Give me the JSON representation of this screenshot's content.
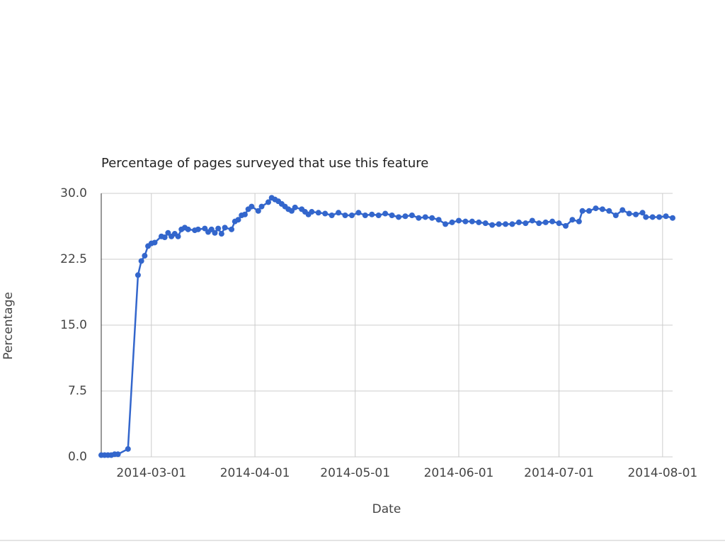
{
  "chart_data": {
    "type": "line",
    "title": "Percentage of pages surveyed that use this feature",
    "xlabel": "Date",
    "ylabel": "Percentage",
    "x": [
      "2014-02-14",
      "2014-02-15",
      "2014-02-16",
      "2014-02-17",
      "2014-02-18",
      "2014-02-19",
      "2014-02-22",
      "2014-02-25",
      "2014-02-26",
      "2014-02-27",
      "2014-02-28",
      "2014-03-01",
      "2014-03-02",
      "2014-03-04",
      "2014-03-05",
      "2014-03-06",
      "2014-03-07",
      "2014-03-08",
      "2014-03-09",
      "2014-03-10",
      "2014-03-11",
      "2014-03-12",
      "2014-03-14",
      "2014-03-15",
      "2014-03-17",
      "2014-03-18",
      "2014-03-19",
      "2014-03-20",
      "2014-03-21",
      "2014-03-22",
      "2014-03-23",
      "2014-03-25",
      "2014-03-26",
      "2014-03-27",
      "2014-03-28",
      "2014-03-29",
      "2014-03-30",
      "2014-03-31",
      "2014-04-02",
      "2014-04-03",
      "2014-04-05",
      "2014-04-06",
      "2014-04-07",
      "2014-04-08",
      "2014-04-09",
      "2014-04-10",
      "2014-04-11",
      "2014-04-12",
      "2014-04-13",
      "2014-04-15",
      "2014-04-16",
      "2014-04-17",
      "2014-04-18",
      "2014-04-20",
      "2014-04-22",
      "2014-04-24",
      "2014-04-26",
      "2014-04-28",
      "2014-04-30",
      "2014-05-02",
      "2014-05-04",
      "2014-05-06",
      "2014-05-08",
      "2014-05-10",
      "2014-05-12",
      "2014-05-14",
      "2014-05-16",
      "2014-05-18",
      "2014-05-20",
      "2014-05-22",
      "2014-05-24",
      "2014-05-26",
      "2014-05-28",
      "2014-05-30",
      "2014-06-01",
      "2014-06-03",
      "2014-06-05",
      "2014-06-07",
      "2014-06-09",
      "2014-06-11",
      "2014-06-13",
      "2014-06-15",
      "2014-06-17",
      "2014-06-19",
      "2014-06-21",
      "2014-06-23",
      "2014-06-25",
      "2014-06-27",
      "2014-06-29",
      "2014-07-01",
      "2014-07-03",
      "2014-07-05",
      "2014-07-07",
      "2014-07-08",
      "2014-07-10",
      "2014-07-12",
      "2014-07-14",
      "2014-07-16",
      "2014-07-18",
      "2014-07-20",
      "2014-07-22",
      "2014-07-24",
      "2014-07-26",
      "2014-07-27",
      "2014-07-29",
      "2014-07-31",
      "2014-08-02",
      "2014-08-04"
    ],
    "series": [
      {
        "name": "Percentage",
        "color": "#3366cc",
        "values": [
          0.2,
          0.2,
          0.2,
          0.2,
          0.3,
          0.3,
          0.9,
          20.7,
          22.3,
          22.9,
          24.0,
          24.3,
          24.4,
          25.1,
          25.0,
          25.5,
          25.1,
          25.4,
          25.1,
          25.9,
          26.1,
          25.9,
          25.8,
          25.9,
          26.0,
          25.6,
          25.9,
          25.5,
          26.0,
          25.4,
          26.1,
          25.9,
          26.8,
          27.0,
          27.5,
          27.6,
          28.2,
          28.5,
          28.0,
          28.5,
          29.0,
          29.5,
          29.3,
          29.1,
          28.8,
          28.5,
          28.2,
          28.0,
          28.4,
          28.2,
          27.9,
          27.6,
          27.9,
          27.8,
          27.7,
          27.5,
          27.8,
          27.5,
          27.5,
          27.8,
          27.5,
          27.6,
          27.5,
          27.7,
          27.5,
          27.3,
          27.4,
          27.5,
          27.2,
          27.3,
          27.2,
          27.0,
          26.5,
          26.7,
          26.9,
          26.8,
          26.8,
          26.7,
          26.6,
          26.4,
          26.5,
          26.5,
          26.5,
          26.7,
          26.6,
          26.9,
          26.6,
          26.7,
          26.8,
          26.6,
          26.3,
          27.0,
          26.8,
          28.0,
          28.0,
          28.3,
          28.2,
          28.0,
          27.5,
          28.1,
          27.7,
          27.6,
          27.8,
          27.3,
          27.3,
          27.3,
          27.4,
          27.2
        ]
      }
    ],
    "xlim": [
      "2014-02-14",
      "2014-08-04"
    ],
    "xticks": [
      "2014-03-01",
      "2014-04-01",
      "2014-05-01",
      "2014-06-01",
      "2014-07-01",
      "2014-08-01"
    ],
    "ylim": [
      0,
      30
    ],
    "yticks": [
      {
        "value": 0,
        "label": "0.0"
      },
      7.5,
      {
        "value": 15,
        "label": "15.0"
      },
      22.5,
      {
        "value": 30,
        "label": "30.0"
      }
    ],
    "grid": true
  }
}
